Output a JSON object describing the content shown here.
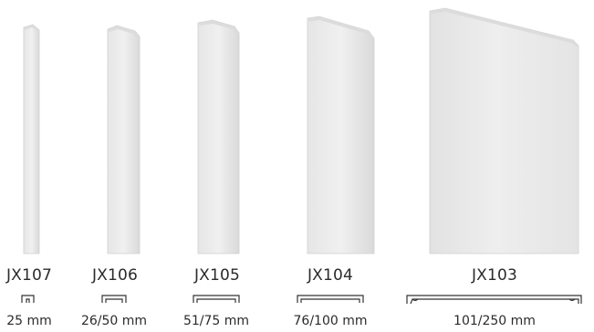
{
  "products": [
    {
      "model": "JX107",
      "size": "25 mm"
    },
    {
      "model": "JX106",
      "size": "26/50 mm"
    },
    {
      "model": "JX105",
      "size": "51/75 mm"
    },
    {
      "model": "JX104",
      "size": "76/100 mm"
    },
    {
      "model": "JX103",
      "size": "101/250 mm"
    }
  ],
  "colors": {
    "panel_light": "#eeeeee",
    "panel_mid": "#e3e3e3",
    "panel_shadow": "#d2d2d2",
    "text": "#2b2b2b",
    "profile_stroke": "#333333"
  }
}
